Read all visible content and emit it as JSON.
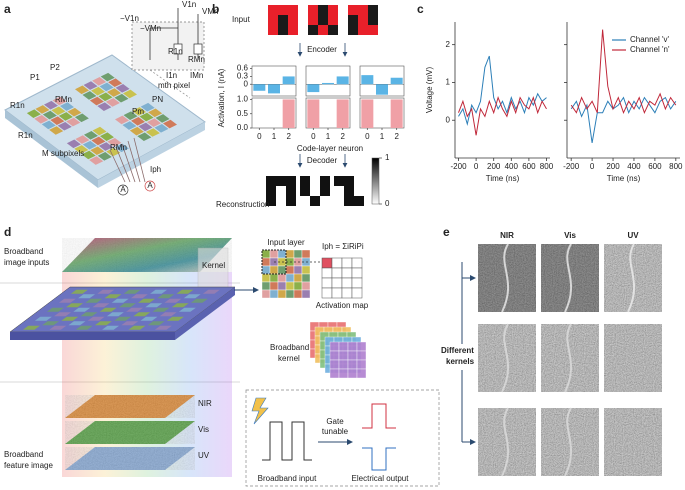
{
  "panel_a": {
    "label": "a",
    "circuit": [
      "−V1n",
      "−VMn",
      "V1n",
      "VMn",
      "R1n",
      "RMn",
      "I1n",
      "IMn",
      "mth pixel"
    ],
    "device": [
      "P1",
      "P2",
      "PN",
      "Pm",
      "R1n",
      "RMn",
      "R1n",
      "RMn",
      "M subpixels",
      "Iph"
    ],
    "ammeters": [
      "A",
      "A"
    ]
  },
  "panel_b": {
    "label": "b",
    "input_label": "Input",
    "encoder": "Encoder",
    "decoder": "Decoder",
    "reconstruction_label": "Reconstruction",
    "y_label": "Activation, I (nA)",
    "x_label": "Code-layer neuron",
    "patterns": [
      [
        [
          1,
          1,
          1
        ],
        [
          1,
          0,
          1
        ],
        [
          1,
          0,
          1
        ]
      ],
      [
        [
          1,
          0,
          1
        ],
        [
          1,
          0,
          1
        ],
        [
          0,
          1,
          0
        ]
      ],
      [
        [
          1,
          1,
          0
        ],
        [
          0,
          1,
          0
        ],
        [
          0,
          1,
          1
        ]
      ]
    ],
    "neurons": [
      0,
      1,
      2
    ],
    "activation": {
      "color": "#5ab4e5",
      "ylim": [
        -0.45,
        0.7
      ],
      "yticks": [
        0.6,
        0.3,
        0
      ],
      "series": [
        [
          -0.25,
          -0.35,
          0.3
        ],
        [
          -0.3,
          0.05,
          0.3
        ],
        [
          0.35,
          -0.4,
          0.25
        ]
      ]
    },
    "output": {
      "color": "#f0a0a6",
      "ylim": [
        0,
        1.05
      ],
      "yticks": [
        {
          "value": 1,
          "label": "1.0"
        },
        {
          "value": 0.5,
          "label": "0.5"
        },
        {
          "value": 0,
          "label": "0.0"
        }
      ],
      "series": [
        [
          0,
          0,
          1
        ],
        [
          1,
          0,
          1
        ],
        [
          1,
          0,
          1
        ]
      ]
    },
    "colorbar": {
      "ticks": [
        1,
        0
      ]
    }
  },
  "chart_data": {
    "type": "line",
    "panel_label": "c",
    "y_label": "Voltage (mV)",
    "x_label": "Time (ns)",
    "x": [
      -200,
      -150,
      -100,
      -50,
      0,
      50,
      100,
      150,
      200,
      250,
      300,
      350,
      400,
      450,
      500,
      550,
      600,
      650,
      700,
      750,
      800
    ],
    "xlim": [
      -240,
      840
    ],
    "xticks": [
      -200,
      0,
      200,
      400,
      600,
      800
    ],
    "ylim": [
      -1,
      2.6
    ],
    "yticks": [
      0,
      1,
      2
    ],
    "legend": "upper right",
    "series": [
      {
        "name": "Channel 'v'",
        "color": "#2c7fb8",
        "values": [
          [
            0.1,
            0.3,
            -0.1,
            0.4,
            0.2,
            0.5,
            1.4,
            1.7,
            0.6,
            0.3,
            0.5,
            0.2,
            0.6,
            0.3,
            0.5,
            0.2,
            0.6,
            0.4,
            0.7,
            0.5,
            0.6
          ],
          [
            0.3,
            0.5,
            0.1,
            0.4,
            -0.6,
            0.2,
            0.2,
            0.5,
            0.3,
            0.4,
            0.6,
            0.2,
            0.5,
            0.3,
            0.6,
            0.4,
            0.2,
            0.5,
            0.6,
            0.3,
            0.5
          ]
        ]
      },
      {
        "name": "Channel 'n'",
        "color": "#c0283a",
        "values": [
          [
            0.2,
            0.5,
            0.1,
            0.3,
            -0.4,
            0.3,
            0.1,
            0.5,
            0.2,
            0.6,
            0.3,
            0.1,
            0.5,
            0.2,
            0.6,
            0.4,
            0.3,
            0.6,
            0.2,
            0.5,
            0.3
          ],
          [
            0.4,
            0.2,
            0.6,
            0.3,
            0.5,
            0.2,
            2.4,
            0.9,
            0.3,
            0.6,
            0.2,
            0.5,
            0.3,
            0.6,
            0.2,
            0.5,
            0.4,
            0.7,
            0.3,
            0.6,
            0.4
          ]
        ]
      }
    ]
  },
  "panel_d": {
    "label": "d",
    "inputs": [
      "Broadband",
      "image inputs"
    ],
    "kernel": "Kernel",
    "input_layer": "Input layer",
    "equation": "Iph = ΣiRiPi",
    "activation_map": "Activation map",
    "broadband_kernel": [
      "Broadband",
      "kernel"
    ],
    "layers": [
      "NIR",
      "Vis",
      "UV"
    ],
    "feature_image": [
      "Broadband",
      "feature image"
    ],
    "gate": [
      "Gate",
      "tunable"
    ],
    "broadband_input": "Broadband input",
    "electrical_output": "Electrical output"
  },
  "panel_e": {
    "label": "e",
    "columns": [
      "NIR",
      "Vis",
      "UV"
    ],
    "kernels": [
      "Different",
      "kernels"
    ]
  }
}
